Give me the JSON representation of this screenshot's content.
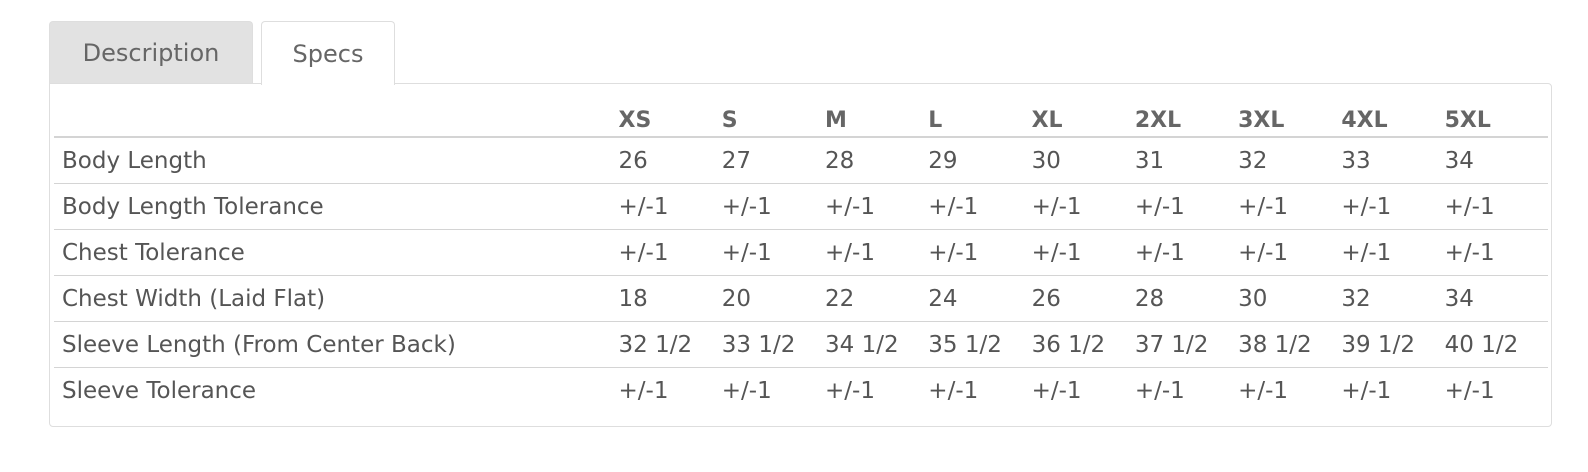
{
  "tabs": [
    {
      "label": "Description",
      "active": false
    },
    {
      "label": "Specs",
      "active": true
    }
  ],
  "specs": {
    "sizes": [
      "XS",
      "S",
      "M",
      "L",
      "XL",
      "2XL",
      "3XL",
      "4XL",
      "5XL"
    ],
    "rows": [
      {
        "label": "Body Length",
        "values": [
          "26",
          "27",
          "28",
          "29",
          "30",
          "31",
          "32",
          "33",
          "34"
        ]
      },
      {
        "label": "Body Length Tolerance",
        "values": [
          "+/-1",
          "+/-1",
          "+/-1",
          "+/-1",
          "+/-1",
          "+/-1",
          "+/-1",
          "+/-1",
          "+/-1"
        ]
      },
      {
        "label": "Chest Tolerance",
        "values": [
          "+/-1",
          "+/-1",
          "+/-1",
          "+/-1",
          "+/-1",
          "+/-1",
          "+/-1",
          "+/-1",
          "+/-1"
        ]
      },
      {
        "label": "Chest Width (Laid Flat)",
        "values": [
          "18",
          "20",
          "22",
          "24",
          "26",
          "28",
          "30",
          "32",
          "34"
        ]
      },
      {
        "label": "Sleeve Length (From Center Back)",
        "values": [
          "32 1/2",
          "33 1/2",
          "34 1/2",
          "35 1/2",
          "36 1/2",
          "37 1/2",
          "38 1/2",
          "39 1/2",
          "40 1/2"
        ]
      },
      {
        "label": "Sleeve Tolerance",
        "values": [
          "+/-1",
          "+/-1",
          "+/-1",
          "+/-1",
          "+/-1",
          "+/-1",
          "+/-1",
          "+/-1",
          "+/-1"
        ]
      }
    ]
  }
}
